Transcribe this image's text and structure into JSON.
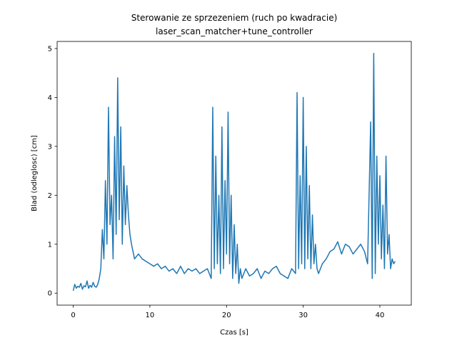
{
  "chart_data": {
    "type": "line",
    "title": "Sterowanie ze sprzezeniem (ruch po kwadracie)",
    "subtitle": "laser_scan_matcher+tune_controller",
    "xlabel": "Czas [s]",
    "ylabel": "Blad (odleglosc) [cm]",
    "xlim": [
      -2.1,
      44.1
    ],
    "ylim": [
      -0.245,
      5.145
    ],
    "xticks": [
      0,
      10,
      20,
      30,
      40
    ],
    "yticks": [
      0,
      1,
      2,
      3,
      4,
      5
    ],
    "grid": false,
    "line_color": "#1f77b4",
    "series": [
      {
        "x": [
          0.0,
          0.2,
          0.4,
          0.6,
          0.8,
          1.0,
          1.2,
          1.4,
          1.6,
          1.8,
          2.0,
          2.2,
          2.4,
          2.6,
          2.8,
          3.0,
          3.2,
          3.4,
          3.6,
          3.8,
          4.0,
          4.2,
          4.4,
          4.6,
          4.8,
          5.0,
          5.2,
          5.4,
          5.6,
          5.8,
          6.0,
          6.2,
          6.4,
          6.6,
          6.8,
          7.0,
          7.2,
          7.4,
          7.6,
          7.8,
          8.0,
          8.5,
          9.0,
          9.5,
          10.0,
          10.5,
          11.0,
          11.5,
          12.0,
          12.5,
          13.0,
          13.5,
          14.0,
          14.5,
          15.0,
          15.5,
          16.0,
          16.5,
          17.0,
          17.5,
          18.0,
          18.2,
          18.4,
          18.6,
          18.8,
          19.0,
          19.2,
          19.4,
          19.6,
          19.8,
          20.0,
          20.2,
          20.4,
          20.6,
          20.8,
          21.0,
          21.2,
          21.4,
          21.6,
          21.8,
          22.0,
          22.5,
          23.0,
          23.5,
          24.0,
          24.5,
          25.0,
          25.5,
          26.0,
          26.5,
          27.0,
          27.5,
          28.0,
          28.5,
          29.0,
          29.2,
          29.4,
          29.6,
          29.8,
          30.0,
          30.2,
          30.4,
          30.6,
          30.8,
          31.0,
          31.2,
          31.4,
          31.6,
          31.8,
          32.0,
          32.5,
          33.0,
          33.5,
          34.0,
          34.5,
          35.0,
          35.5,
          36.0,
          36.5,
          37.0,
          37.5,
          38.0,
          38.4,
          38.8,
          39.0,
          39.2,
          39.4,
          39.6,
          39.8,
          40.0,
          40.2,
          40.4,
          40.6,
          40.8,
          41.0,
          41.2,
          41.4,
          41.6,
          41.8,
          42.0
        ],
        "values": [
          0.05,
          0.18,
          0.1,
          0.14,
          0.12,
          0.2,
          0.08,
          0.15,
          0.13,
          0.25,
          0.1,
          0.16,
          0.12,
          0.22,
          0.14,
          0.12,
          0.18,
          0.3,
          0.5,
          1.3,
          0.7,
          2.3,
          1.0,
          3.8,
          1.4,
          2.0,
          0.7,
          3.2,
          1.2,
          4.4,
          1.5,
          3.4,
          1.0,
          2.6,
          1.4,
          2.2,
          1.6,
          1.2,
          1.0,
          0.85,
          0.7,
          0.8,
          0.7,
          0.65,
          0.6,
          0.55,
          0.6,
          0.5,
          0.55,
          0.45,
          0.5,
          0.4,
          0.55,
          0.4,
          0.5,
          0.45,
          0.5,
          0.4,
          0.45,
          0.5,
          0.3,
          3.8,
          0.5,
          2.8,
          0.6,
          2.0,
          0.4,
          3.4,
          0.5,
          2.3,
          0.8,
          3.7,
          0.6,
          2.0,
          0.3,
          1.4,
          0.4,
          1.0,
          0.2,
          0.5,
          0.3,
          0.5,
          0.35,
          0.4,
          0.5,
          0.3,
          0.45,
          0.4,
          0.5,
          0.55,
          0.4,
          0.35,
          0.3,
          0.5,
          0.4,
          4.1,
          0.5,
          2.4,
          0.6,
          4.0,
          0.5,
          3.0,
          0.7,
          2.2,
          0.5,
          1.6,
          0.6,
          1.0,
          0.5,
          0.4,
          0.6,
          0.7,
          0.85,
          0.9,
          1.05,
          0.8,
          1.0,
          0.95,
          0.8,
          0.9,
          1.0,
          0.85,
          0.6,
          3.5,
          0.3,
          4.9,
          0.4,
          2.8,
          1.0,
          2.4,
          0.7,
          1.8,
          0.5,
          2.8,
          0.8,
          1.2,
          0.5,
          0.7,
          0.6,
          0.65
        ]
      }
    ]
  }
}
